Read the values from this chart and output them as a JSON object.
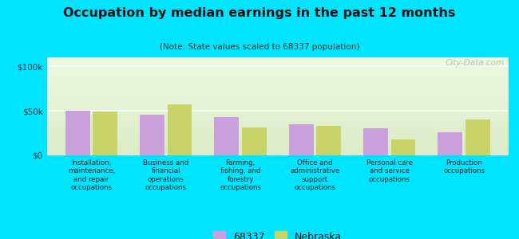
{
  "title": "Occupation by median earnings in the past 12 months",
  "subtitle": "(Note: State values scaled to 68337 population)",
  "categories": [
    "Installation,\nmaintenance,\nand repair\noccupations",
    "Business and\nfinancial\noperations\noccupations",
    "Farming,\nfishing, and\nforestry\noccupations",
    "Office and\nadministrative\nsupport\noccupations",
    "Personal care\nand service\noccupations",
    "Production\noccupations"
  ],
  "values_68337": [
    50000,
    46000,
    43000,
    35000,
    30000,
    26000
  ],
  "values_nebraska": [
    49000,
    57000,
    31000,
    33000,
    18000,
    40000
  ],
  "color_68337": "#c9a0dc",
  "color_nebraska": "#c8d468",
  "background_outer": "#00e5ff",
  "yticks": [
    0,
    50000,
    100000
  ],
  "ylabels": [
    "$0",
    "$50k",
    "$100k"
  ],
  "ylim": [
    0,
    110000
  ],
  "legend_label_68337": "68337",
  "legend_label_nebraska": "Nebraska",
  "watermark": "City-Data.com"
}
